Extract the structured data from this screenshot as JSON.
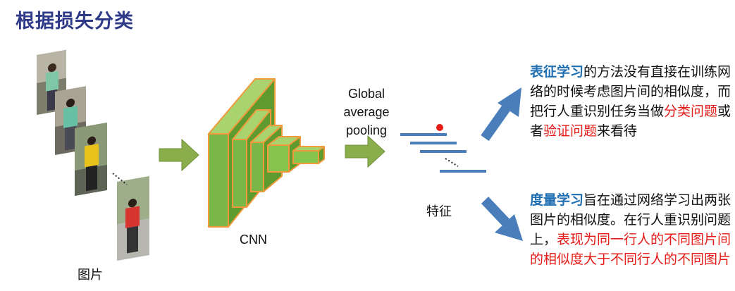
{
  "title": "根据损失分类",
  "labels": {
    "images": "图片",
    "cnn": "CNN",
    "pooling": [
      "Global",
      "average",
      "pooling"
    ],
    "feature": "特征"
  },
  "representation": {
    "keyword": "表征学习",
    "text_before": "的方法没有直接在训练网络的时候考虑图片间的相似度，而把行人重识别任务当做",
    "red1": "分类问题",
    "mid": "或者",
    "red2": "验证问题",
    "text_after": "来看待"
  },
  "metric": {
    "keyword": "度量学习",
    "text_before": "旨在通过网络学习出两张图片的相似度。在行人重识别问题上，",
    "red": "表现为同一行人的不同图片间的相似度大于不同行人的不同图片"
  },
  "colors": {
    "title": "#2E3A87",
    "keyword": "#1f6fb2",
    "highlight": "#e41b17",
    "arrow_green": "#8BAE4C",
    "arrow_blue": "#4A7EBB",
    "cnn_fill": "#7AB648",
    "cnn_edge": "#F29A3B"
  }
}
